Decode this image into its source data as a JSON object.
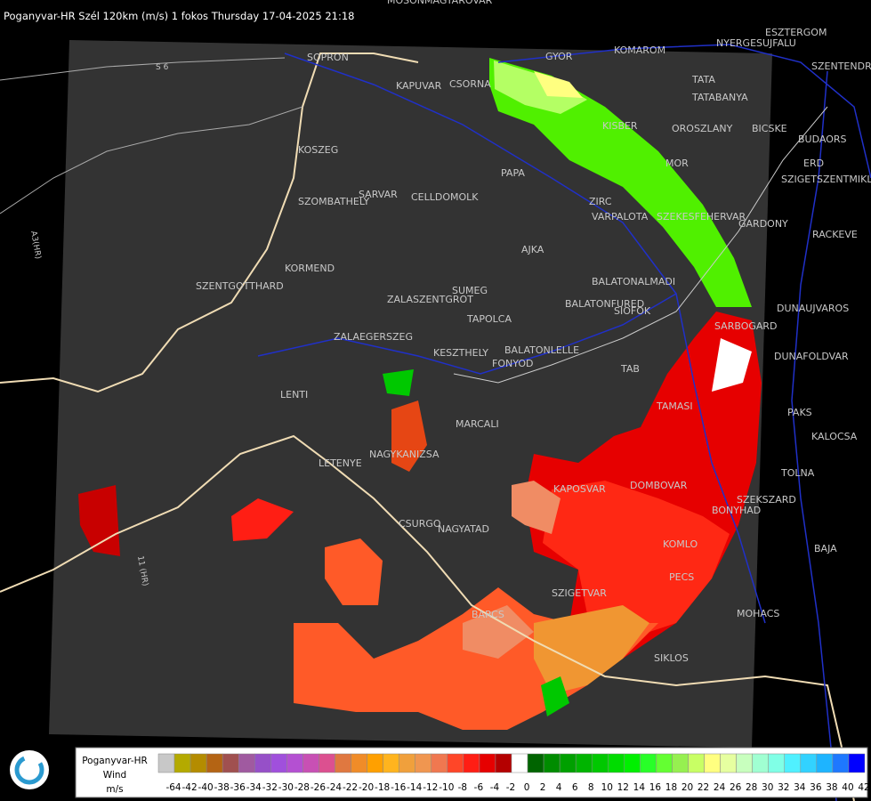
{
  "header": {
    "title": "Poganyvar-HR Szél 120km (m/s) 1 fokos Thursday 17-04-2025 21:18"
  },
  "roads": [
    "S 6",
    "A3(HR)",
    "11 (HR)"
  ],
  "places": [
    "MOSONMAGYAROVAR",
    "SOPRON",
    "GYOR",
    "KOMAROM",
    "ESZTERGOM",
    "NYERGESUJFALU",
    "SZENTENDRE",
    "KAPUVAR",
    "CSORNA",
    "TATA",
    "TATABANYA",
    "KISBER",
    "OROSZLANY",
    "BICSKE",
    "BUDAORS",
    "MOR",
    "ERD",
    "SZIGETSZENTMIKLOS",
    "KOSZEG",
    "PAPA",
    "SARVAR",
    "CELLDOMOLK",
    "SZOMBATHELY",
    "ZIRC",
    "VARPALOTA",
    "SZEKESFEHERVAR",
    "GARDONY",
    "RACKEVE",
    "AJKA",
    "KORMEND",
    "BALATONALMADI",
    "SZENTGOTTHARD",
    "SUMEG",
    "ZALASZENTGROT",
    "BALATONFURED",
    "SIOFOK",
    "DUNAUJVAROS",
    "TAPOLCA",
    "SARBOGARD",
    "ZALAEGERSZEG",
    "BALATONLELLE",
    "KESZTHELY",
    "FONYOD",
    "DUNAFOLDVAR",
    "TAB",
    "LENTI",
    "TAMASI",
    "PAKS",
    "MARCALI",
    "KALOCSA",
    "NAGYKANIZSA",
    "LETENYE",
    "TOLNA",
    "KAPOSVAR",
    "DOMBOVAR",
    "SZEKSZARD",
    "BONYHAD",
    "CSURGO",
    "NAGYATAD",
    "KOMLO",
    "BAJA",
    "PECS",
    "SZIGETVAR",
    "BARCS",
    "MOHACS",
    "SIKLOS"
  ],
  "legend": {
    "station": "Poganyvar-HR",
    "quantity": "Wind",
    "unit": "m/s",
    "labels": [
      -64,
      -42,
      -40,
      -38,
      -36,
      -34,
      -32,
      -30,
      -28,
      -26,
      -24,
      -22,
      -20,
      -18,
      -16,
      -14,
      -12,
      -10,
      -8,
      -6,
      -4,
      -2,
      0,
      2,
      4,
      6,
      8,
      10,
      12,
      14,
      16,
      18,
      20,
      22,
      24,
      26,
      28,
      30,
      32,
      34,
      36,
      38,
      40,
      42
    ],
    "colors": [
      "#c8c8c8",
      "#b4aa00",
      "#b48c00",
      "#b46414",
      "#a05050",
      "#a05aa0",
      "#9650c8",
      "#a050dc",
      "#b450d2",
      "#c850b4",
      "#dc5090",
      "#e07840",
      "#f08c28",
      "#ffa000",
      "#ffb41e",
      "#f0a03c",
      "#f09650",
      "#f07850",
      "#ff4628",
      "#ff1e14",
      "#e60000",
      "#b40000",
      "#ffffff",
      "#006400",
      "#008c00",
      "#00a000",
      "#00b400",
      "#00c800",
      "#00dc00",
      "#00f000",
      "#28ff28",
      "#64ff32",
      "#96f050",
      "#c8ff64",
      "#ffff80",
      "#e6ffa0",
      "#c8ffbe",
      "#a0ffd2",
      "#80ffe6",
      "#50f0ff",
      "#32d2ff",
      "#1eb4ff",
      "#1e78ff",
      "#0000ff"
    ]
  }
}
